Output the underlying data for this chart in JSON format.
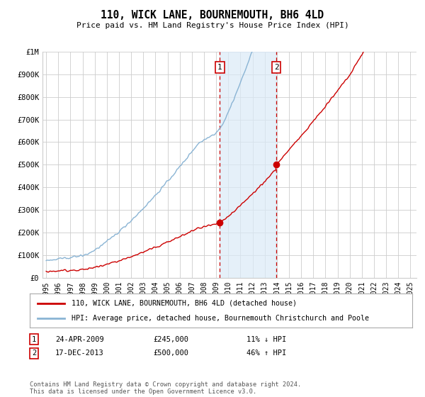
{
  "title": "110, WICK LANE, BOURNEMOUTH, BH6 4LD",
  "subtitle": "Price paid vs. HM Land Registry's House Price Index (HPI)",
  "ylim": [
    0,
    1000000
  ],
  "yticks": [
    0,
    100000,
    200000,
    300000,
    400000,
    500000,
    600000,
    700000,
    800000,
    900000,
    1000000
  ],
  "ytick_labels": [
    "£0",
    "£100K",
    "£200K",
    "£300K",
    "£400K",
    "£500K",
    "£600K",
    "£700K",
    "£800K",
    "£900K",
    "£1M"
  ],
  "hpi_color": "#8ab4d4",
  "sold_color": "#cc0000",
  "sale1_year": 2009.31,
  "sale1_price": 245000,
  "sale2_year": 2013.96,
  "sale2_price": 500000,
  "sale1_date": "24-APR-2009",
  "sale1_price_str": "£245,000",
  "sale1_hpi": "11% ↓ HPI",
  "sale2_date": "17-DEC-2013",
  "sale2_price_str": "£500,000",
  "sale2_hpi": "46% ↑ HPI",
  "legend_sold": "110, WICK LANE, BOURNEMOUTH, BH6 4LD (detached house)",
  "legend_hpi": "HPI: Average price, detached house, Bournemouth Christchurch and Poole",
  "footer": "Contains HM Land Registry data © Crown copyright and database right 2024.\nThis data is licensed under the Open Government Licence v3.0.",
  "background_color": "#ffffff",
  "grid_color": "#cccccc",
  "shade_color": "#dbeaf7",
  "xlim_min": 1994.7,
  "xlim_max": 2025.5
}
